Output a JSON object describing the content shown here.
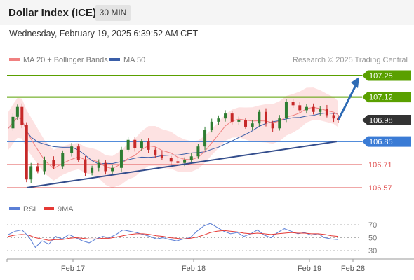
{
  "header": {
    "title": "Dollar Index (ICE)",
    "timeframe": "30 MIN"
  },
  "datetime": "Wednesday, February 19, 2025 6:39:52 AM CET",
  "legend": {
    "ma20_label": "MA 20 + Bollinger Bands",
    "ma50_label": "MA 50",
    "rsi_label": "RSI",
    "rsi_ma_label": "9MA"
  },
  "copyright": "Research © 2025 Trading Central",
  "colors": {
    "resistance": "#5aa000",
    "support": "#3a7bd5",
    "target": "#e05050",
    "trendline": "#334d8c",
    "current": "#333333",
    "candle_up": "#2e7d32",
    "candle_down": "#c62828",
    "bollinger_fill": "#fde2e2",
    "ma20": "#f08080",
    "ma50": "#3a5ea8",
    "rsi": "#5b7fd6",
    "rsi_ma": "#e53935",
    "arrow": "#2e6bb5"
  },
  "chart_data": [
    {
      "type": "candlestick",
      "y_range": [
        106.5,
        107.3
      ],
      "x_ticks": [
        "Feb 17",
        "Feb 18",
        "Feb 19",
        "Feb 28"
      ],
      "levels": [
        {
          "label": "107.25",
          "value": 107.25,
          "kind": "resistance"
        },
        {
          "label": "107.12",
          "value": 107.12,
          "kind": "resistance"
        },
        {
          "label": "106.98",
          "value": 106.98,
          "kind": "current"
        },
        {
          "label": "106.85",
          "value": 106.85,
          "kind": "support"
        },
        {
          "label": "106.71",
          "value": 106.71,
          "kind": "target"
        },
        {
          "label": "106.57",
          "value": 106.57,
          "kind": "target"
        }
      ],
      "trendline": {
        "from": {
          "t": 5,
          "price": 106.57
        },
        "to": {
          "t": 136,
          "price": 106.85
        }
      },
      "forecast_arrow": {
        "from": {
          "t": 146,
          "price": 106.98
        },
        "to": {
          "t": 162,
          "price": 107.25
        }
      },
      "price_series": [
        [
          0,
          106.93
        ],
        [
          2,
          107.0
        ],
        [
          4,
          107.06
        ],
        [
          6,
          106.95
        ],
        [
          8,
          106.62
        ],
        [
          10,
          106.7
        ],
        [
          13,
          106.67
        ],
        [
          16,
          106.74
        ],
        [
          20,
          106.7
        ],
        [
          24,
          106.78
        ],
        [
          28,
          106.82
        ],
        [
          31,
          106.74
        ],
        [
          34,
          106.66
        ],
        [
          37,
          106.69
        ],
        [
          40,
          106.72
        ],
        [
          43,
          106.67
        ],
        [
          46,
          106.69
        ],
        [
          50,
          106.8
        ],
        [
          53,
          106.86
        ],
        [
          56,
          106.81
        ],
        [
          59,
          106.85
        ],
        [
          62,
          106.8
        ],
        [
          65,
          106.77
        ],
        [
          68,
          106.75
        ],
        [
          72,
          106.73
        ],
        [
          75,
          106.72
        ],
        [
          78,
          106.74
        ],
        [
          81,
          106.76
        ],
        [
          84,
          106.82
        ],
        [
          87,
          106.92
        ],
        [
          90,
          106.97
        ],
        [
          93,
          106.99
        ],
        [
          96,
          107.02
        ],
        [
          99,
          106.97
        ],
        [
          102,
          106.98
        ],
        [
          105,
          106.94
        ],
        [
          108,
          106.96
        ],
        [
          111,
          107.03
        ],
        [
          114,
          106.96
        ],
        [
          117,
          106.93
        ],
        [
          120,
          106.99
        ],
        [
          123,
          107.09
        ],
        [
          126,
          107.07
        ],
        [
          129,
          107.04
        ],
        [
          132,
          107.06
        ],
        [
          135,
          107.03
        ],
        [
          138,
          107.05
        ],
        [
          141,
          107.01
        ],
        [
          144,
          106.99
        ],
        [
          146,
          106.98
        ]
      ]
    },
    {
      "type": "line",
      "title": "RSI",
      "y_ticks": [
        70,
        50,
        30
      ],
      "series": [
        {
          "name": "RSI",
          "values": [
            55,
            60,
            62,
            52,
            35,
            45,
            40,
            52,
            48,
            55,
            50,
            45,
            42,
            48,
            52,
            50,
            55,
            62,
            60,
            58,
            55,
            52,
            48,
            50,
            47,
            45,
            48,
            50,
            60,
            68,
            72,
            66,
            60,
            56,
            58,
            52,
            56,
            62,
            54,
            50,
            58,
            64,
            60,
            56,
            58,
            54,
            56,
            50,
            48,
            47
          ]
        },
        {
          "name": "9MA",
          "values": [
            52,
            54,
            55,
            54,
            50,
            48,
            46,
            47,
            47,
            49,
            50,
            49,
            48,
            48,
            49,
            49,
            51,
            53,
            55,
            56,
            56,
            55,
            53,
            52,
            50,
            49,
            48,
            49,
            51,
            54,
            58,
            60,
            61,
            60,
            59,
            57,
            56,
            57,
            56,
            55,
            56,
            57,
            58,
            57,
            57,
            56,
            56,
            55,
            53,
            52
          ]
        }
      ]
    }
  ]
}
